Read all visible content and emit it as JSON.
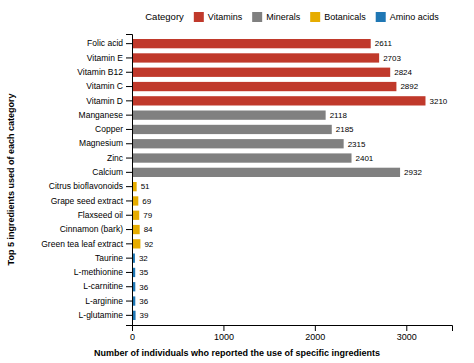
{
  "chart_data": {
    "type": "bar",
    "orientation": "horizontal",
    "categories": [
      "L-glutamine",
      "L-arginine",
      "L-carnitine",
      "L-methionine",
      "Taurine",
      "Green tea leaf extract",
      "Cinnamon (bark)",
      "Flaxseed oil",
      "Grape seed extract",
      "Citrus bioflavonoids",
      "Calcium",
      "Zinc",
      "Magnesium",
      "Copper",
      "Manganese",
      "Vitamin D",
      "Vitamin C",
      "Vitamin B12",
      "Vitamin E",
      "Folic acid"
    ],
    "values": [
      39,
      36,
      36,
      35,
      32,
      92,
      84,
      79,
      69,
      51,
      2932,
      2401,
      2315,
      2185,
      2118,
      3210,
      2892,
      2824,
      2703,
      2611
    ],
    "colors": [
      "#1f77b4",
      "#1f77b4",
      "#1f77b4",
      "#1f77b4",
      "#1f77b4",
      "#e6ac00",
      "#e6ac00",
      "#e6ac00",
      "#e6ac00",
      "#e6ac00",
      "#808080",
      "#808080",
      "#808080",
      "#808080",
      "#808080",
      "#c0392b",
      "#c0392b",
      "#c0392b",
      "#c0392b",
      "#c0392b"
    ],
    "xlabel": "Number of individuals who reported the use of specific ingredients",
    "ylabel": "Top 5 ingredients used of each category",
    "xlim": [
      0,
      3500
    ],
    "xticks": [
      0,
      1000,
      2000,
      3000
    ],
    "data_labels": true,
    "grid": false,
    "legend": "top",
    "legend_title": "Category",
    "legend_labels": [
      "Vitamins",
      "Minerals",
      "Botanicals",
      "Amino acids"
    ],
    "legend_colors": [
      "#c0392b",
      "#808080",
      "#e6ac00",
      "#1f77b4"
    ]
  }
}
